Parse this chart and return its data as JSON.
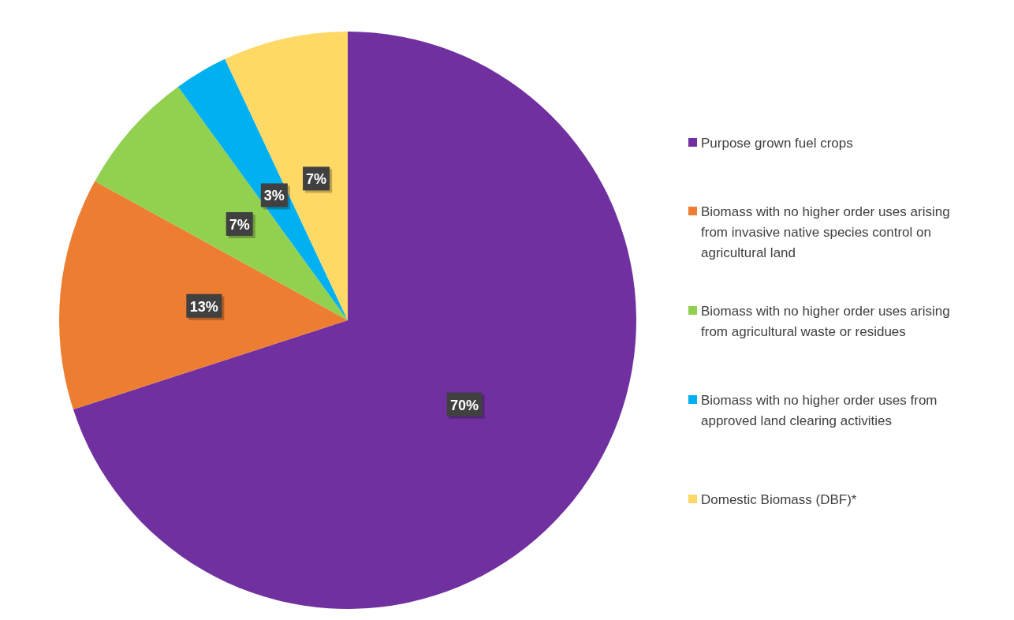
{
  "chart_data": {
    "type": "pie",
    "categories": [
      "Purpose grown fuel crops",
      "Biomass with no higher order uses arising from invasive native species control on agricultural land",
      "Biomass with no higher order uses arising from agricultural waste or residues",
      "Biomass with no higher order uses from approved land clearing activities",
      "Domestic Biomass (DBF)*"
    ],
    "values": [
      70,
      13,
      7,
      3,
      7
    ],
    "colors": [
      "#7030a0",
      "#ed7d31",
      "#92d050",
      "#00b0f0",
      "#ffd966"
    ],
    "value_labels": [
      "70%",
      "13%",
      "7%",
      "3%",
      "7%"
    ],
    "legend": "right"
  }
}
